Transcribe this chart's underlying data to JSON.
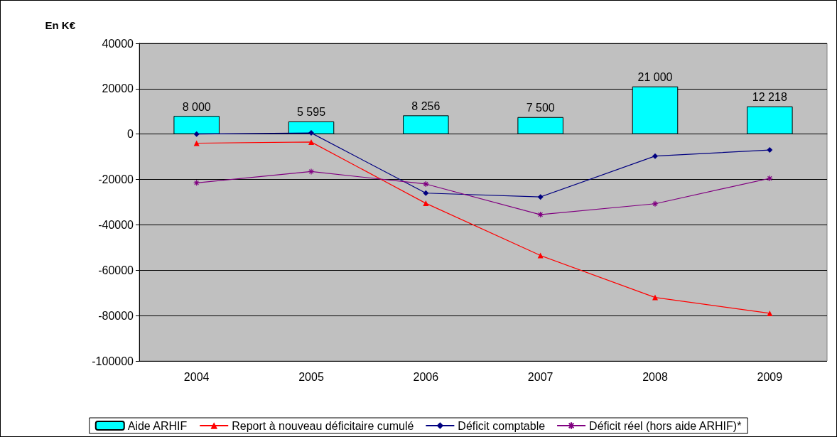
{
  "chart_data": {
    "type": "bar",
    "ylabel": "En K€",
    "categories": [
      "2004",
      "2005",
      "2006",
      "2007",
      "2008",
      "2009"
    ],
    "series": [
      {
        "name": "Aide ARHIF",
        "color": "#00ffff",
        "values": [
          8000,
          5595,
          8256,
          7500,
          21000,
          12218
        ],
        "value_labels": [
          "8 000",
          "5 595",
          "8 256",
          "7 500",
          "21 000",
          "12 218"
        ]
      },
      {
        "name": "Report à nouveau déficitaire cumulé",
        "type": "line",
        "color": "#ff0000",
        "marker": "triangle",
        "values": [
          -4000,
          -3500,
          -30500,
          -53500,
          -72000,
          -79000
        ]
      },
      {
        "name": "Déficit comptable",
        "type": "line",
        "color": "#000080",
        "marker": "diamond",
        "values": [
          0,
          500,
          -26000,
          -27700,
          -9700,
          -7000
        ]
      },
      {
        "name": "Déficit réel (hors aide ARHIF)*",
        "type": "line",
        "color": "#800080",
        "marker": "cross",
        "values": [
          -21500,
          -16500,
          -22000,
          -35500,
          -30700,
          -19500
        ]
      }
    ],
    "ylim": [
      -100000,
      40000
    ],
    "yticks": [
      -100000,
      -80000,
      -60000,
      -40000,
      -20000,
      0,
      20000,
      40000
    ],
    "grid": "y",
    "legend": "bottom",
    "line_style": "solid"
  }
}
